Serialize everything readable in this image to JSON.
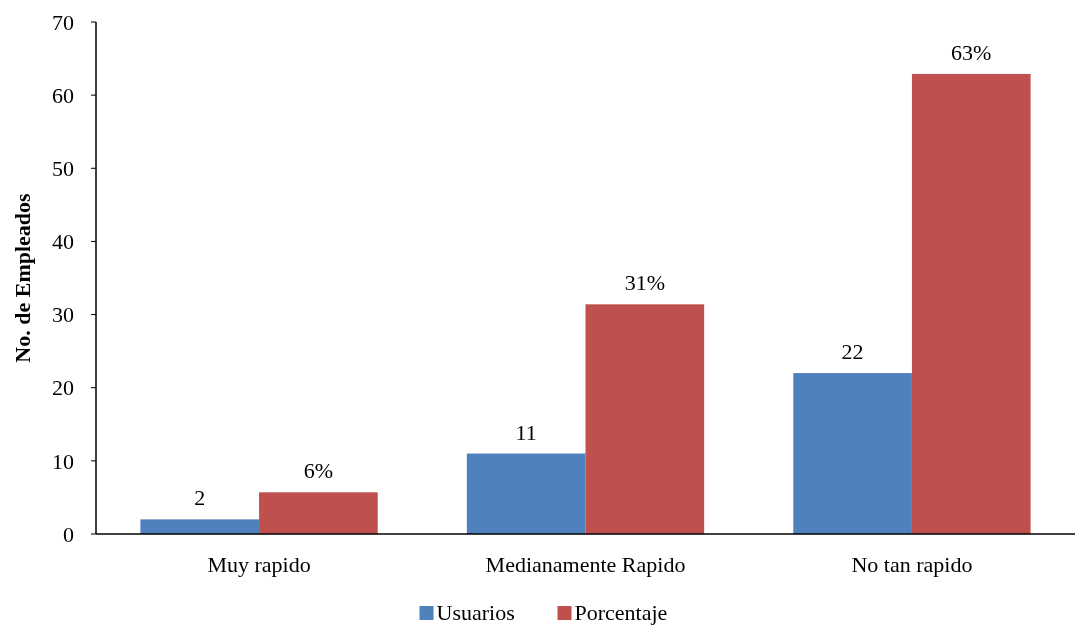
{
  "chart_data": {
    "type": "bar",
    "ylabel": "No. de Empleados",
    "categories": [
      "Muy rapido",
      "Medianamente Rapido",
      "No tan rapido"
    ],
    "series": [
      {
        "name": "Usuarios",
        "color": "#4f81bd",
        "values": [
          2,
          11,
          22
        ],
        "value_labels": [
          "2",
          "11",
          "22"
        ]
      },
      {
        "name": "Porcentaje",
        "color": "#c0504d",
        "values": [
          5.7,
          31.4,
          62.9
        ],
        "value_labels": [
          "6%",
          "31%",
          "63%"
        ]
      }
    ],
    "ylim": [
      0,
      70
    ],
    "yticks": [
      0,
      10,
      20,
      30,
      40,
      50,
      60,
      70
    ],
    "grid": false,
    "legend": "bottom"
  }
}
